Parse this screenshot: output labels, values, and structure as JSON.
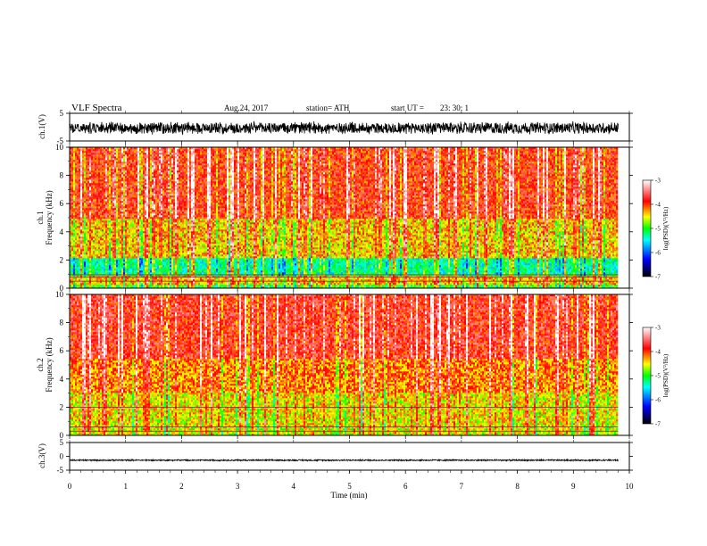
{
  "header": {
    "title": "VLF  Spectra",
    "date": "Aug.24, 2017",
    "station": "station= ATH",
    "start_label": "start  UT  =",
    "start_time": "23: 30: 1"
  },
  "chart_data": [
    {
      "type": "line",
      "panel": "ch1-waveform",
      "ylabel": "ch.1(V)",
      "ylim": [
        -5,
        5
      ],
      "yticks": [
        5,
        -5
      ],
      "xlim": [
        0,
        10
      ],
      "x_extent_min": 9.8,
      "amplitude_mean": -0.3,
      "amplitude_spread": 2.5,
      "color": "#000000"
    },
    {
      "type": "heatmap",
      "panel": "ch1-spectrogram",
      "ylabel": "ch.1\nFrequency (kHz)",
      "ylim": [
        0,
        10
      ],
      "yticks": [
        0,
        2,
        4,
        6,
        8,
        10
      ],
      "xlim": [
        0,
        10
      ],
      "x_extent_min": 9.8,
      "colorbar": {
        "label": "log(PSD)(V²/Hz)",
        "range": [
          -7,
          -3
        ],
        "ticks": [
          -3,
          -4,
          -5,
          -6,
          -7
        ]
      },
      "bands": [
        {
          "freq_range_khz": [
            0.0,
            0.2
          ],
          "level": -5.0
        },
        {
          "freq_range_khz": [
            0.2,
            0.9
          ],
          "level": -4.4
        },
        {
          "freq_range_khz": [
            0.9,
            2.2
          ],
          "level": -5.3
        },
        {
          "freq_range_khz": [
            2.2,
            5.0
          ],
          "level": -4.4
        },
        {
          "freq_range_khz": [
            5.0,
            10.0
          ],
          "level": -3.9
        }
      ],
      "lines_khz": [
        0.5,
        0.8,
        0.95
      ]
    },
    {
      "type": "heatmap",
      "panel": "ch2-spectrogram",
      "ylabel": "ch.2\nFrequency (kHz)",
      "ylim": [
        0,
        10
      ],
      "yticks": [
        0,
        2,
        4,
        6,
        8,
        10
      ],
      "xlim": [
        0,
        10
      ],
      "x_extent_min": 9.8,
      "colorbar": {
        "label": "log(PSD)(V²/Hz)",
        "range": [
          -7,
          -3
        ],
        "ticks": [
          -3,
          -4,
          -5,
          -6,
          -7
        ]
      },
      "bands": [
        {
          "freq_range_khz": [
            0.0,
            0.6
          ],
          "level": -4.6
        },
        {
          "freq_range_khz": [
            0.6,
            3.0
          ],
          "level": -4.5
        },
        {
          "freq_range_khz": [
            3.0,
            5.5
          ],
          "level": -4.2
        },
        {
          "freq_range_khz": [
            5.5,
            10.0
          ],
          "level": -3.8
        }
      ],
      "lines_khz": [
        0.3,
        0.6,
        2.0
      ]
    },
    {
      "type": "line",
      "panel": "ch3-waveform",
      "ylabel": "ch.3(V)",
      "ylim": [
        -5,
        5
      ],
      "yticks": [
        5,
        0,
        -5
      ],
      "xlim": [
        0,
        10
      ],
      "x_extent_min": 9.8,
      "amplitude_mean": -1.4,
      "amplitude_spread": 0.3,
      "color": "#000000"
    }
  ],
  "xaxis": {
    "label": "Time  (min)",
    "ticks": [
      0,
      1,
      2,
      3,
      4,
      5,
      6,
      7,
      8,
      9,
      10
    ]
  },
  "colors": {
    "colormap": [
      "#000000",
      "#0000ff",
      "#00ffff",
      "#00ff00",
      "#ffff00",
      "#ff0000",
      "#ffffff"
    ]
  }
}
